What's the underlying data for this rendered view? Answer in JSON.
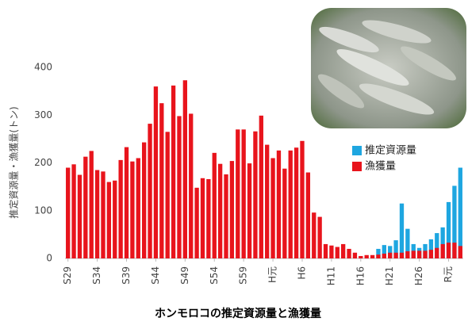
{
  "chart_data": {
    "type": "bar",
    "title": "ホンモロコの推定資源量と漁獲量",
    "ylabel": "推定資源量・漁獲量(トン)",
    "categories": [
      "S29",
      null,
      null,
      null,
      null,
      "S34",
      null,
      null,
      null,
      null,
      "S39",
      null,
      null,
      null,
      null,
      "S44",
      null,
      null,
      null,
      null,
      "S49",
      null,
      null,
      null,
      null,
      "S54",
      null,
      null,
      null,
      null,
      "S59",
      null,
      null,
      null,
      null,
      "H元",
      null,
      null,
      null,
      null,
      "H6",
      null,
      null,
      null,
      null,
      "H11",
      null,
      null,
      null,
      null,
      "H16",
      null,
      null,
      null,
      null,
      "H21",
      null,
      null,
      null,
      null,
      "H26",
      null,
      null,
      null,
      null,
      "R元",
      null,
      null
    ],
    "series": [
      {
        "name": "推定資源量",
        "color": "#1ea6e0",
        "values": [
          null,
          null,
          null,
          null,
          null,
          null,
          null,
          null,
          null,
          null,
          null,
          null,
          null,
          null,
          null,
          null,
          null,
          null,
          null,
          null,
          null,
          null,
          null,
          null,
          null,
          null,
          null,
          null,
          null,
          null,
          null,
          null,
          null,
          null,
          null,
          null,
          null,
          null,
          null,
          null,
          null,
          null,
          null,
          null,
          null,
          null,
          null,
          null,
          null,
          null,
          null,
          null,
          null,
          20,
          28,
          26,
          38,
          115,
          62,
          30,
          22,
          30,
          40,
          53,
          65,
          118,
          152,
          190
        ]
      },
      {
        "name": "漁獲量",
        "color": "#e8141c",
        "values": [
          190,
          197,
          175,
          213,
          225,
          185,
          182,
          160,
          163,
          206,
          233,
          203,
          210,
          243,
          282,
          360,
          325,
          265,
          362,
          298,
          373,
          303,
          148,
          168,
          166,
          221,
          198,
          176,
          204,
          270,
          270,
          199,
          266,
          299,
          238,
          210,
          226,
          188,
          226,
          232,
          246,
          180,
          96,
          87,
          30,
          27,
          24,
          30,
          20,
          12,
          5,
          7,
          7,
          8,
          10,
          12,
          12,
          12,
          15,
          16,
          16,
          16,
          18,
          22,
          30,
          33,
          33,
          26
        ]
      }
    ],
    "ylim": [
      0,
      400
    ],
    "yticks": [
      0,
      100,
      200,
      300,
      400
    ],
    "grid": false,
    "legend": "right"
  }
}
